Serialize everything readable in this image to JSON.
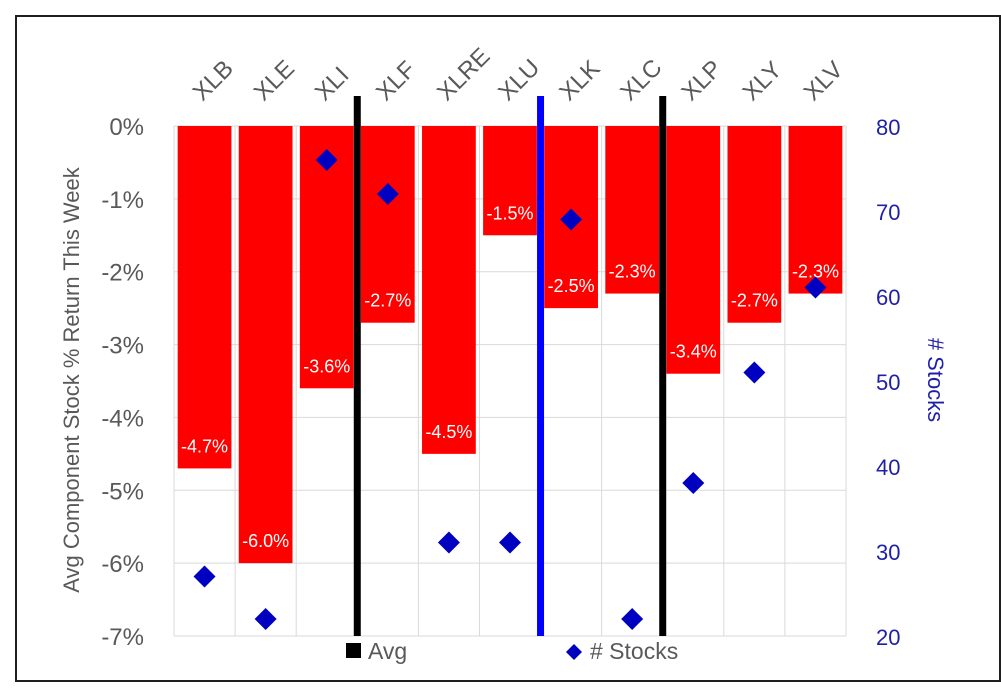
{
  "chart_data": {
    "type": "bar",
    "categories": [
      "XLB",
      "XLE",
      "XLI",
      "XLF",
      "XLRE",
      "XLU",
      "XLK",
      "XLC",
      "XLP",
      "XLY",
      "XLV"
    ],
    "series": [
      {
        "values": [
          -4.7,
          -6.0,
          -3.6,
          -2.7,
          -4.5,
          -1.5,
          -2.5,
          -2.3,
          -3.4,
          -2.7,
          -2.3
        ],
        "labels": [
          "-4.7%",
          "-6.0%",
          "-3.6%",
          "-2.7%",
          "-4.5%",
          "-1.5%",
          "-2.5%",
          "-2.3%",
          "-3.4%",
          "-2.7%",
          "-2.3%"
        ],
        "color": "#ff0000",
        "axis": "left"
      },
      {
        "name": "# Stocks",
        "type": "scatter",
        "marker": "diamond",
        "values": [
          27,
          22,
          76,
          72,
          31,
          31,
          69,
          22,
          38,
          51,
          61
        ],
        "color": "#0000c0",
        "axis": "right"
      }
    ],
    "avg_lines": [
      {
        "name": "Avg",
        "between": [
          "XLI",
          "XLF"
        ],
        "color": "#000000"
      },
      {
        "between": [
          "XLU",
          "XLK"
        ],
        "color": "#0000ff"
      },
      {
        "between": [
          "XLC",
          "XLP"
        ],
        "color": "#000000"
      }
    ],
    "ylabel": "Avg Component Stock % Return This Week",
    "y2label": "# Stocks",
    "ylim": [
      -7,
      0
    ],
    "y2lim": [
      20,
      80
    ],
    "yticks": [
      "0%",
      "-1%",
      "-2%",
      "-3%",
      "-4%",
      "-5%",
      "-6%",
      "-7%"
    ],
    "y2ticks": [
      "80",
      "70",
      "60",
      "50",
      "40",
      "30",
      "20"
    ],
    "legend": {
      "position": "bottom",
      "items": [
        {
          "label": "Avg",
          "symbol": "square",
          "color": "#000000"
        },
        {
          "label": "# Stocks",
          "symbol": "diamond",
          "color": "#0000c0"
        }
      ]
    },
    "grid": true,
    "colors": {
      "bar": "#ff0000",
      "diamond": "#0000c0",
      "axis2": "#1f1fa8",
      "text": "#595959"
    }
  }
}
